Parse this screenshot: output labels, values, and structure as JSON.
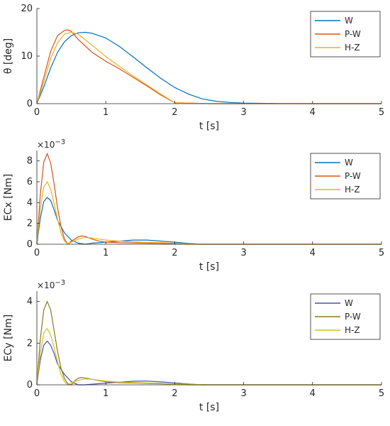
{
  "chart_data": [
    {
      "type": "line",
      "xlabel": "t [s]",
      "ylabel": "θ [deg]",
      "xlim": [
        0,
        5
      ],
      "ylim": [
        0,
        20
      ],
      "xticks": [
        "0",
        "1",
        "2",
        "3",
        "4",
        "5"
      ],
      "yticks": [
        "0",
        "10",
        "20"
      ],
      "exponent": "",
      "legend_position": "top-right",
      "series": [
        {
          "name": "W",
          "color": "#0072BD",
          "x": [
            0,
            0.1,
            0.2,
            0.3,
            0.4,
            0.5,
            0.6,
            0.7,
            0.8,
            1.0,
            1.2,
            1.4,
            1.6,
            1.8,
            2.0,
            2.2,
            2.4,
            2.6,
            2.8,
            3.0,
            3.5,
            4.0,
            5.0
          ],
          "y": [
            0,
            3.5,
            7.5,
            10.8,
            13.0,
            14.3,
            14.9,
            15.0,
            14.8,
            13.8,
            12.0,
            9.8,
            7.5,
            5.3,
            3.4,
            2.0,
            1.0,
            0.5,
            0.25,
            0.12,
            0.03,
            0.0,
            0.0
          ]
        },
        {
          "name": "P-W",
          "color": "#D95319",
          "x": [
            0,
            0.1,
            0.2,
            0.3,
            0.4,
            0.45,
            0.5,
            0.6,
            0.8,
            1.0,
            1.2,
            1.4,
            1.6,
            1.8,
            2.0,
            2.5,
            3.0,
            4.0,
            5.0
          ],
          "y": [
            0,
            5.5,
            11.0,
            14.3,
            15.4,
            15.5,
            15.2,
            13.5,
            10.8,
            8.9,
            7.3,
            5.5,
            3.7,
            1.8,
            0.2,
            0.0,
            0.0,
            0.0,
            0.0
          ]
        },
        {
          "name": "H-Z",
          "color": "#EDB120",
          "x": [
            0,
            0.1,
            0.2,
            0.3,
            0.4,
            0.5,
            0.6,
            0.8,
            1.0,
            1.2,
            1.4,
            1.6,
            1.8,
            2.0,
            2.5,
            3.0,
            4.0,
            5.0
          ],
          "y": [
            0,
            4.5,
            9.5,
            12.8,
            14.6,
            15.0,
            14.6,
            12.3,
            9.9,
            7.8,
            5.8,
            3.9,
            2.0,
            0.2,
            0.0,
            0.0,
            0.0,
            0.0
          ]
        }
      ]
    },
    {
      "type": "line",
      "xlabel": "t [s]",
      "ylabel": "ECx [Nm]",
      "xlim": [
        0,
        5
      ],
      "ylim": [
        0,
        0.009
      ],
      "xticks": [
        "0",
        "1",
        "2",
        "3",
        "4",
        "5"
      ],
      "yticks": [
        "0",
        "2",
        "4",
        "6",
        "8"
      ],
      "exponent": "×10",
      "exponent_power": "−3",
      "legend_position": "top-right",
      "series": [
        {
          "name": "W",
          "color": "#0072BD",
          "x": [
            0,
            0.05,
            0.1,
            0.15,
            0.2,
            0.25,
            0.3,
            0.4,
            0.5,
            0.6,
            0.7,
            0.8,
            1.0,
            1.2,
            1.4,
            1.5,
            1.6,
            1.8,
            2.0,
            2.2,
            2.4,
            3.0,
            5.0
          ],
          "y": [
            0,
            0.0025,
            0.0041,
            0.0045,
            0.0042,
            0.0033,
            0.0023,
            0.0011,
            0.0004,
            0.0001,
            0.0,
            0.0001,
            0.0002,
            0.0003,
            0.0004,
            0.0004,
            0.0004,
            0.0003,
            0.0002,
            8e-05,
            0.0,
            0.0,
            0.0
          ]
        },
        {
          "name": "P-W",
          "color": "#D95319",
          "x": [
            0,
            0.05,
            0.1,
            0.15,
            0.2,
            0.25,
            0.3,
            0.35,
            0.4,
            0.45,
            0.5,
            0.6,
            0.65,
            0.7,
            0.8,
            0.9,
            1.0,
            1.2,
            1.5,
            1.8,
            2.0,
            2.2,
            2.5,
            5.0
          ],
          "y": [
            0,
            0.0048,
            0.0079,
            0.0087,
            0.0078,
            0.0058,
            0.0035,
            0.0017,
            0.0005,
            0.0,
            0.0003,
            0.0007,
            0.0008,
            0.00075,
            0.0005,
            0.0003,
            0.0002,
            0.00015,
            0.00012,
            8e-05,
            4e-05,
            0.0,
            0.0,
            0.0
          ]
        },
        {
          "name": "H-Z",
          "color": "#EDB120",
          "x": [
            0,
            0.05,
            0.1,
            0.15,
            0.2,
            0.25,
            0.3,
            0.35,
            0.4,
            0.45,
            0.5,
            0.6,
            0.7,
            0.8,
            0.9,
            1.0,
            1.2,
            1.5,
            1.8,
            2.0,
            2.2,
            2.5,
            5.0
          ],
          "y": [
            0,
            0.0034,
            0.0055,
            0.006,
            0.0053,
            0.0039,
            0.0024,
            0.0011,
            0.0003,
            0.0,
            0.0002,
            0.0005,
            0.00065,
            0.0006,
            0.0005,
            0.0004,
            0.0003,
            0.0002,
            0.00015,
            0.0001,
            4e-05,
            0.0,
            0.0
          ]
        }
      ]
    },
    {
      "type": "line",
      "xlabel": "t [s]",
      "ylabel": "ECy [Nm]",
      "xlim": [
        0,
        5
      ],
      "ylim": [
        0,
        0.0045
      ],
      "xticks": [
        "0",
        "1",
        "2",
        "3",
        "4",
        "5"
      ],
      "yticks": [
        "0",
        "2",
        "4"
      ],
      "exponent": "×10",
      "exponent_power": "−3",
      "legend_position": "top-right",
      "series": [
        {
          "name": "W",
          "color": "#4A4FB8",
          "x": [
            0,
            0.05,
            0.1,
            0.15,
            0.2,
            0.25,
            0.3,
            0.4,
            0.5,
            0.6,
            0.7,
            0.8,
            1.0,
            1.2,
            1.4,
            1.5,
            1.6,
            1.8,
            2.0,
            2.2,
            2.4,
            3.0,
            5.0
          ],
          "y": [
            0,
            0.0012,
            0.0019,
            0.0021,
            0.0019,
            0.0015,
            0.001,
            0.0005,
            0.00015,
            0.0,
            0.0,
            3e-05,
            8e-05,
            0.00013,
            0.00017,
            0.00018,
            0.00018,
            0.00014,
            9e-05,
            4e-05,
            0.0,
            0.0,
            0.0
          ]
        },
        {
          "name": "P-W",
          "color": "#8C7A1E",
          "x": [
            0,
            0.05,
            0.1,
            0.15,
            0.2,
            0.25,
            0.3,
            0.35,
            0.4,
            0.45,
            0.5,
            0.55,
            0.6,
            0.65,
            0.7,
            0.8,
            0.9,
            1.0,
            1.2,
            1.5,
            1.8,
            2.0,
            2.2,
            2.5,
            5.0
          ],
          "y": [
            0,
            0.0022,
            0.0036,
            0.004,
            0.0036,
            0.0026,
            0.0016,
            0.0008,
            0.0003,
            5e-05,
            0.0,
            0.0002,
            0.00032,
            0.00035,
            0.00033,
            0.00027,
            0.0002,
            0.00015,
            0.0001,
            8e-05,
            5e-05,
            3e-05,
            0.0,
            0.0,
            0.0
          ]
        },
        {
          "name": "H-Z",
          "color": "#D4C21C",
          "x": [
            0,
            0.05,
            0.1,
            0.15,
            0.2,
            0.25,
            0.3,
            0.35,
            0.4,
            0.45,
            0.5,
            0.6,
            0.7,
            0.8,
            0.9,
            1.0,
            1.2,
            1.5,
            1.8,
            2.0,
            2.2,
            2.5,
            5.0
          ],
          "y": [
            0,
            0.0015,
            0.0025,
            0.0027,
            0.0024,
            0.0018,
            0.0011,
            0.0005,
            0.00015,
            0.0,
            0.0001,
            0.00022,
            0.00028,
            0.00027,
            0.00022,
            0.00018,
            0.00013,
            0.0001,
            7e-05,
            4e-05,
            2e-05,
            0.0,
            0.0
          ]
        }
      ]
    }
  ]
}
